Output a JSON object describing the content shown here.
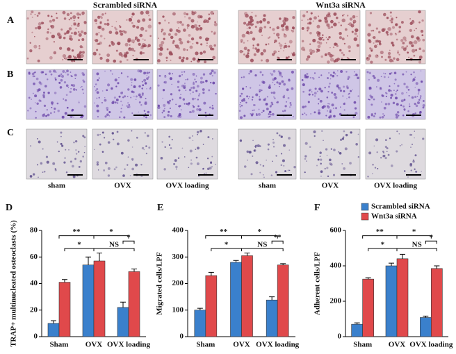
{
  "figure": {
    "group_titles": [
      "Scrambled siRNA",
      "Wnt3a siRNA"
    ],
    "panel_labels": [
      "A",
      "B",
      "C"
    ],
    "conditions": [
      "sham",
      "OVX",
      "OVX loading"
    ]
  },
  "chart_data": [
    {
      "type": "bar",
      "panel": "D",
      "ylabel": "TRAP+ multinucleated osteoclasts (%)",
      "categories": [
        "Sham",
        "OVX",
        "OVX loading"
      ],
      "series": [
        {
          "color": "#3a80cc",
          "values": [
            10,
            54,
            22
          ],
          "errors": [
            2,
            6,
            4
          ]
        },
        {
          "color": "#e0494b",
          "values": [
            41,
            57,
            49
          ],
          "errors": [
            2,
            6,
            2
          ]
        }
      ],
      "ylim": [
        0,
        80
      ],
      "yticks": [
        0,
        20,
        40,
        60,
        80
      ],
      "annotations": [
        "**",
        "*",
        "*",
        "*",
        "NS"
      ]
    },
    {
      "type": "bar",
      "panel": "E",
      "ylabel": "Migrated cells/LPF",
      "categories": [
        "Sham",
        "OVX",
        "OVX loading"
      ],
      "series": [
        {
          "color": "#3a80cc",
          "values": [
            100,
            280,
            138
          ],
          "errors": [
            7,
            7,
            12
          ]
        },
        {
          "color": "#e0494b",
          "values": [
            230,
            305,
            270
          ],
          "errors": [
            12,
            10,
            5
          ]
        }
      ],
      "ylim": [
        0,
        400
      ],
      "yticks": [
        0,
        100,
        200,
        300,
        400
      ],
      "annotations": [
        "**",
        "*",
        "**",
        "*",
        "NS"
      ]
    },
    {
      "type": "bar",
      "panel": "F",
      "ylabel": "Adherent cells/LPF",
      "categories": [
        "Sham",
        "OVX",
        "OVX loading"
      ],
      "series": [
        {
          "name": "Scrambled siRNA",
          "color": "#3a80cc",
          "values": [
            70,
            400,
            108
          ],
          "errors": [
            8,
            15,
            8
          ]
        },
        {
          "name": "Wnt3a siRNA",
          "color": "#e0494b",
          "values": [
            325,
            440,
            385
          ],
          "errors": [
            8,
            25,
            15
          ]
        }
      ],
      "ylim": [
        0,
        600
      ],
      "yticks": [
        0,
        200,
        400,
        600
      ],
      "annotations": [
        "**",
        "*",
        "*",
        "*",
        "NS"
      ],
      "legend": "top"
    }
  ]
}
